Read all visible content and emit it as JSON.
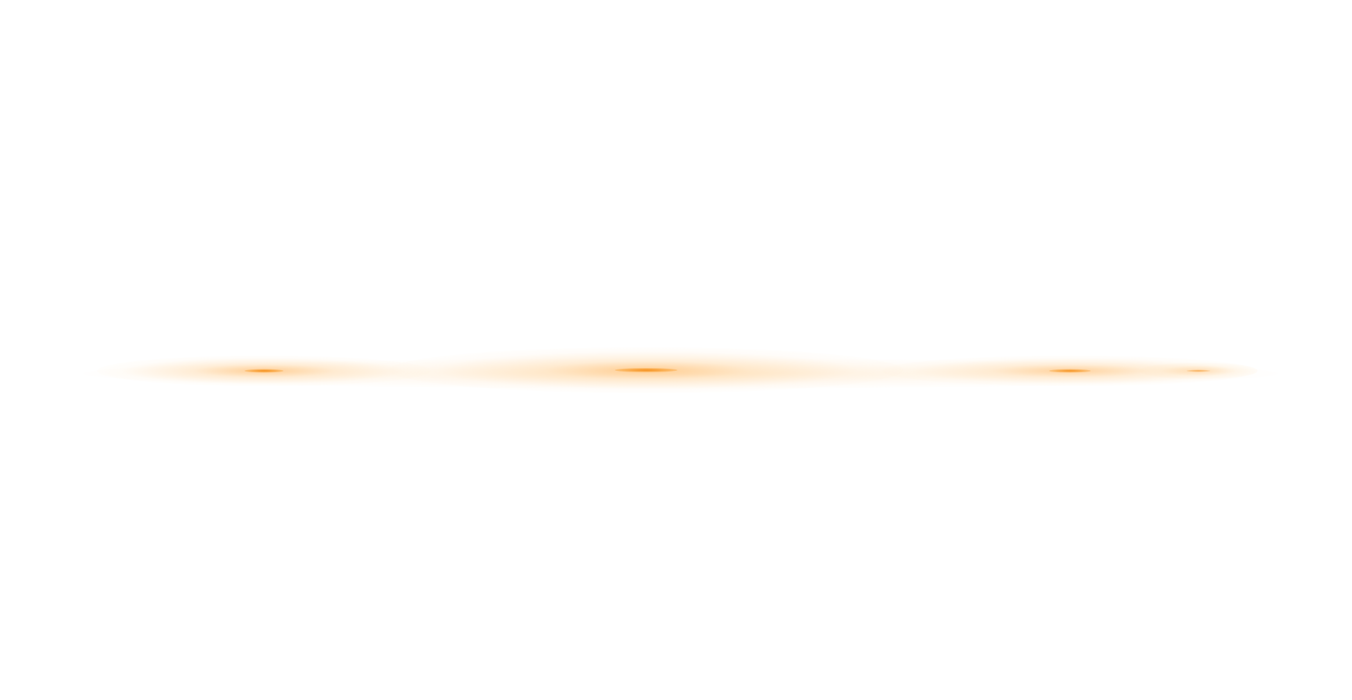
{
  "scene": {
    "description_free": true,
    "background_color": "#ffffff",
    "accent_color": "#f58c14",
    "flares": [
      {
        "name": "left-flare"
      },
      {
        "name": "center-flare"
      },
      {
        "name": "right-flare"
      },
      {
        "name": "far-right-flare"
      }
    ]
  }
}
